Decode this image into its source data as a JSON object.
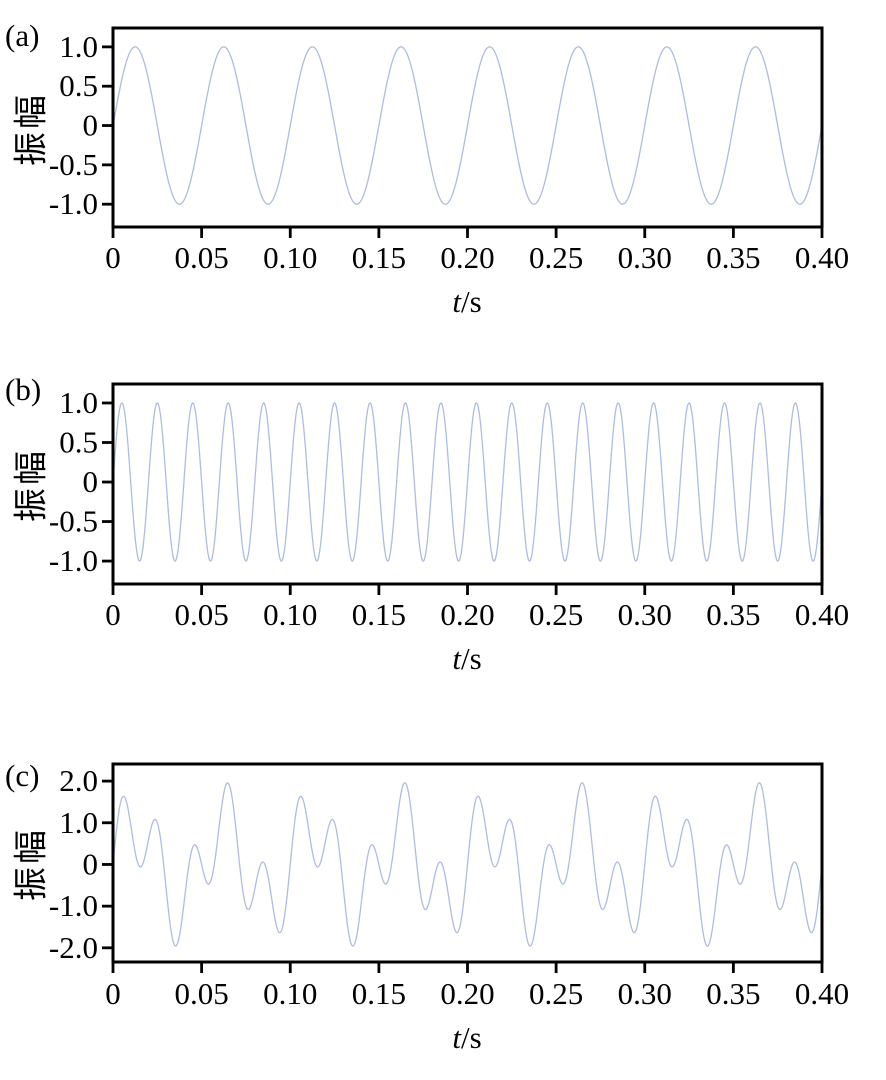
{
  "figure": {
    "background_color": "#ffffff",
    "axis_color": "#000000",
    "curve_color": "#aebce2"
  },
  "chart_data": [
    {
      "type": "line",
      "panel_tag": "(a)",
      "signal": "sin(2*pi*20*t)",
      "components": [
        {
          "frequency_hz": 20,
          "amplitude": 1.0,
          "phase_rad": 0
        }
      ],
      "x": {
        "label_var": "t",
        "label_unit": "/s",
        "min": 0,
        "max": 0.4,
        "ticks": [
          0,
          0.05,
          0.1,
          0.15,
          0.2,
          0.25,
          0.3,
          0.35,
          0.4
        ],
        "tick_labels": [
          "0",
          "0.05",
          "0.10",
          "0.15",
          "0.20",
          "0.25",
          "0.30",
          "0.35",
          "0.40"
        ]
      },
      "y": {
        "label": "振幅",
        "min": -1.29,
        "max": 1.24,
        "ticks": [
          1.0,
          0.5,
          0,
          -0.5,
          -1.0
        ],
        "tick_labels": [
          "1.0",
          "0.5",
          "0",
          "-0.5",
          "-1.0"
        ]
      },
      "grid": false,
      "legend": null,
      "line_color": "#aebce2",
      "line_width": 1.3
    },
    {
      "type": "line",
      "panel_tag": "(b)",
      "signal": "sin(2*pi*50*t)",
      "components": [
        {
          "frequency_hz": 50,
          "amplitude": 1.0,
          "phase_rad": 0
        }
      ],
      "x": {
        "label_var": "t",
        "label_unit": "/s",
        "min": 0,
        "max": 0.4,
        "ticks": [
          0,
          0.05,
          0.1,
          0.15,
          0.2,
          0.25,
          0.3,
          0.35,
          0.4
        ],
        "tick_labels": [
          "0",
          "0.05",
          "0.10",
          "0.15",
          "0.20",
          "0.25",
          "0.30",
          "0.35",
          "0.40"
        ]
      },
      "y": {
        "label": "振幅",
        "min": -1.29,
        "max": 1.24,
        "ticks": [
          1.0,
          0.5,
          0,
          -0.5,
          -1.0
        ],
        "tick_labels": [
          "1.0",
          "0.5",
          "0",
          "-0.5",
          "-1.0"
        ]
      },
      "grid": false,
      "legend": null,
      "line_color": "#aebce2",
      "line_width": 1.3
    },
    {
      "type": "line",
      "panel_tag": "(c)",
      "signal": "sin(2*pi*20*t) + sin(2*pi*50*t)",
      "components": [
        {
          "frequency_hz": 20,
          "amplitude": 1.0,
          "phase_rad": 0
        },
        {
          "frequency_hz": 50,
          "amplitude": 1.0,
          "phase_rad": 0
        }
      ],
      "x": {
        "label_var": "t",
        "label_unit": "/s",
        "min": 0,
        "max": 0.4,
        "ticks": [
          0,
          0.05,
          0.1,
          0.15,
          0.2,
          0.25,
          0.3,
          0.35,
          0.4
        ],
        "tick_labels": [
          "0",
          "0.05",
          "0.10",
          "0.15",
          "0.20",
          "0.25",
          "0.30",
          "0.35",
          "0.40"
        ]
      },
      "y": {
        "label": "振幅",
        "min": -2.34,
        "max": 2.41,
        "ticks": [
          2.0,
          1.0,
          0,
          -1.0,
          -2.0
        ],
        "tick_labels": [
          "2.0",
          "1.0",
          "0",
          "-1.0",
          "-2.0"
        ]
      },
      "grid": false,
      "legend": null,
      "line_color": "#aebce2",
      "line_width": 1.3
    }
  ]
}
